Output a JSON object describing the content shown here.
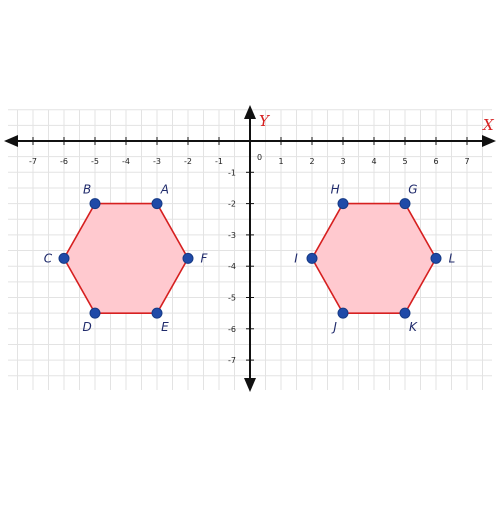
{
  "axes": {
    "x_name": "X",
    "y_name": "Y",
    "origin_label": "0",
    "x_range": [
      -7,
      7
    ],
    "y_range": [
      -7,
      0
    ],
    "x_ticks": [
      "-7",
      "-6",
      "-5",
      "-4",
      "-3",
      "-2",
      "-1",
      "1",
      "2",
      "3",
      "4",
      "5",
      "6",
      "7"
    ],
    "y_ticks": [
      "-1",
      "-2",
      "-3",
      "-4",
      "-5",
      "-6",
      "-7"
    ],
    "grid": true
  },
  "colors": {
    "axis_name": "#d62020",
    "axis_line": "#111111",
    "grid": "#e3e3e3",
    "polygon_fill": "#ffc9cf",
    "polygon_stroke": "#d62020",
    "vertex": "#1f4aa8",
    "vertex_label": "#1f2a6b"
  },
  "shapes": [
    {
      "vertices": [
        {
          "label": "A",
          "x": -3,
          "y": -2
        },
        {
          "label": "B",
          "x": -5,
          "y": -2
        },
        {
          "label": "C",
          "x": -6,
          "y": -3.75
        },
        {
          "label": "D",
          "x": -5,
          "y": -5.5
        },
        {
          "label": "E",
          "x": -3,
          "y": -5.5
        },
        {
          "label": "F",
          "x": -2,
          "y": -3.75
        }
      ]
    },
    {
      "vertices": [
        {
          "label": "G",
          "x": 5,
          "y": -2
        },
        {
          "label": "H",
          "x": 3,
          "y": -2
        },
        {
          "label": "I",
          "x": 2,
          "y": -3.75
        },
        {
          "label": "J",
          "x": 3,
          "y": -5.5
        },
        {
          "label": "K",
          "x": 5,
          "y": -5.5
        },
        {
          "label": "L",
          "x": 6,
          "y": -3.75
        }
      ]
    }
  ]
}
